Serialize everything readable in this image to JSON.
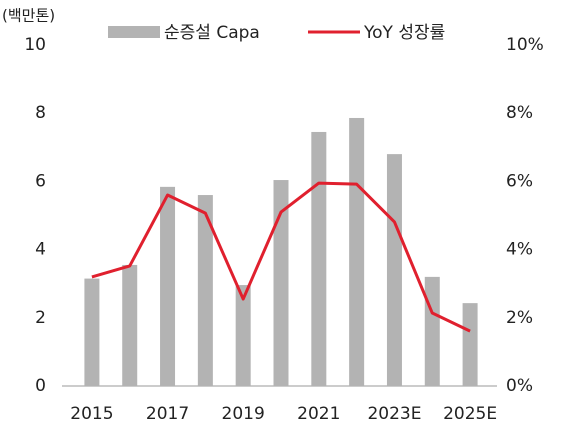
{
  "chart_data": {
    "type": "bar-line",
    "unit_label": "(백만톤)",
    "categories": [
      "2015",
      null,
      "2017",
      null,
      "2019",
      null,
      "2021",
      null,
      "2023E",
      null,
      "2025E"
    ],
    "series": [
      {
        "name": "순증설 Capa",
        "type": "bar",
        "color": "#b3b3b3",
        "values": [
          3.15,
          3.55,
          5.84,
          5.6,
          2.96,
          6.04,
          7.45,
          7.86,
          6.8,
          3.2,
          2.43
        ]
      },
      {
        "name": "YoY 성장률",
        "type": "line",
        "axis": "y2",
        "color": "#e0202e",
        "values": [
          3.2,
          3.52,
          5.6,
          5.07,
          2.55,
          5.1,
          5.95,
          5.92,
          4.81,
          2.14,
          1.61
        ]
      }
    ],
    "ylim": [
      0,
      10
    ],
    "yticks": [
      0,
      2,
      4,
      6,
      8,
      10
    ],
    "y2lim": [
      0,
      10
    ],
    "y2ticks": [
      {
        "value": 0,
        "label": "0%"
      },
      {
        "value": 2,
        "label": "2%"
      },
      {
        "value": 4,
        "label": "4%"
      },
      {
        "value": 6,
        "label": "6%"
      },
      {
        "value": 8,
        "label": "8%"
      },
      {
        "value": 10,
        "label": "10%"
      }
    ],
    "grid": false
  }
}
